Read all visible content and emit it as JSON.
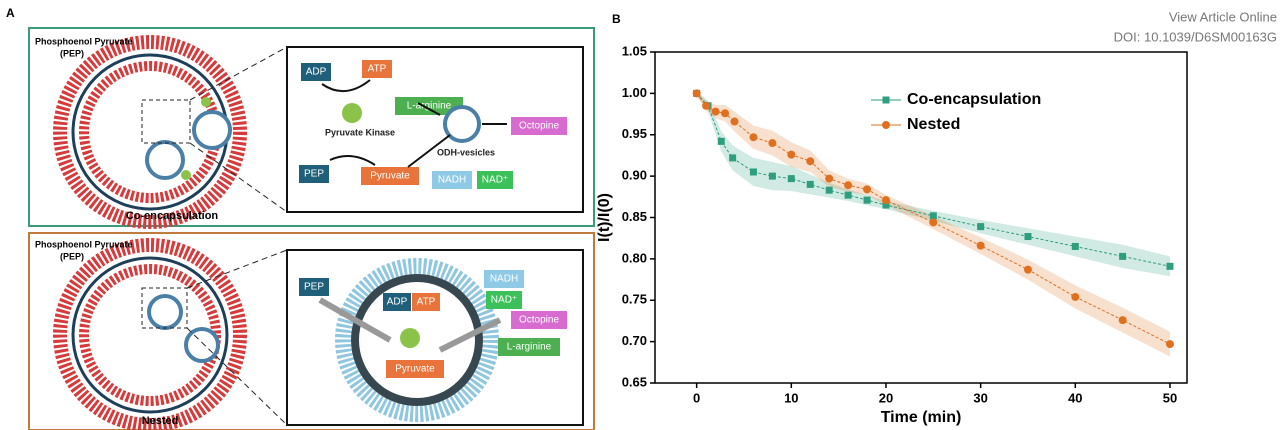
{
  "header": {
    "view_article": "View Article Online",
    "doi": "DOI: 10.1039/D6SM00163G"
  },
  "panel_a": {
    "label": "A",
    "top": {
      "pep_line1": "Phosphoenol Pyruvate",
      "pep_line2": "(PEP)",
      "caption": "Co-encapsulation",
      "adp": "ADP",
      "atp": "ATP",
      "l_arginine": "L-arginine",
      "kinase": "Pyruvate Kinase",
      "odh": "ODH-vesicles",
      "octopine": "Octopine",
      "pep": "PEP",
      "pyruvate": "Pyruvate",
      "nadh": "NADH",
      "nad": "NAD⁺"
    },
    "bottom": {
      "pep_line1": "Phosphoenol Pyruvate",
      "pep_line2": "(PEP)",
      "caption": "Nested",
      "pep": "PEP",
      "adp": "ADP",
      "atp": "ATP",
      "nadh": "NADH",
      "nad": "NAD⁺",
      "octopine": "Octopine",
      "l_arginine": "L-arginine",
      "pyruvate": "Pyruvate"
    }
  },
  "chart_data": {
    "type": "line",
    "panel_label": "B",
    "xlabel": "Time (min)",
    "ylabel": "I(t)/I(0)",
    "xlim": [
      -4.4,
      51.8
    ],
    "xticks": [
      0,
      10,
      20,
      30,
      40,
      50
    ],
    "ylim": [
      0.65,
      1.05
    ],
    "yticks": [
      0.65,
      {
        "value": 0.7,
        "label": "0.70"
      },
      0.75,
      {
        "value": 0.8,
        "label": "0.80"
      },
      0.85,
      {
        "value": 0.9,
        "label": "0.90"
      },
      0.95,
      {
        "value": 1.0,
        "label": "1.00"
      },
      1.05
    ],
    "legend": "upper center",
    "series": [
      {
        "name": "Co-encapsulation",
        "color": "#2e9e7e",
        "marker": "square",
        "x": [
          0,
          1.2,
          2.6,
          3.8,
          6,
          8,
          10,
          12,
          14,
          16,
          18,
          20,
          25,
          30,
          35,
          40,
          45,
          50
        ],
        "values": [
          1.0,
          0.985,
          0.942,
          0.922,
          0.905,
          0.9,
          0.897,
          0.89,
          0.883,
          0.877,
          0.871,
          0.865,
          0.852,
          0.839,
          0.827,
          0.815,
          0.803,
          0.791
        ],
        "errors": [
          0.003,
          0.006,
          0.012,
          0.015,
          0.017,
          0.017,
          0.015,
          0.012,
          0.009,
          0.007,
          0.006,
          0.005,
          0.006,
          0.008,
          0.01,
          0.012,
          0.014,
          0.012
        ]
      },
      {
        "name": "Nested",
        "color": "#e07020",
        "marker": "circle",
        "x": [
          0,
          1,
          2,
          3,
          4,
          6,
          8,
          10,
          12,
          14,
          16,
          18,
          20,
          25,
          30,
          35,
          40,
          45,
          50
        ],
        "values": [
          1.0,
          0.985,
          0.978,
          0.976,
          0.966,
          0.947,
          0.94,
          0.926,
          0.918,
          0.897,
          0.889,
          0.884,
          0.871,
          0.844,
          0.816,
          0.787,
          0.754,
          0.726,
          0.697
        ],
        "errors": [
          0.003,
          0.006,
          0.008,
          0.01,
          0.012,
          0.014,
          0.015,
          0.015,
          0.013,
          0.01,
          0.008,
          0.007,
          0.006,
          0.008,
          0.01,
          0.012,
          0.014,
          0.015,
          0.015
        ]
      }
    ]
  }
}
